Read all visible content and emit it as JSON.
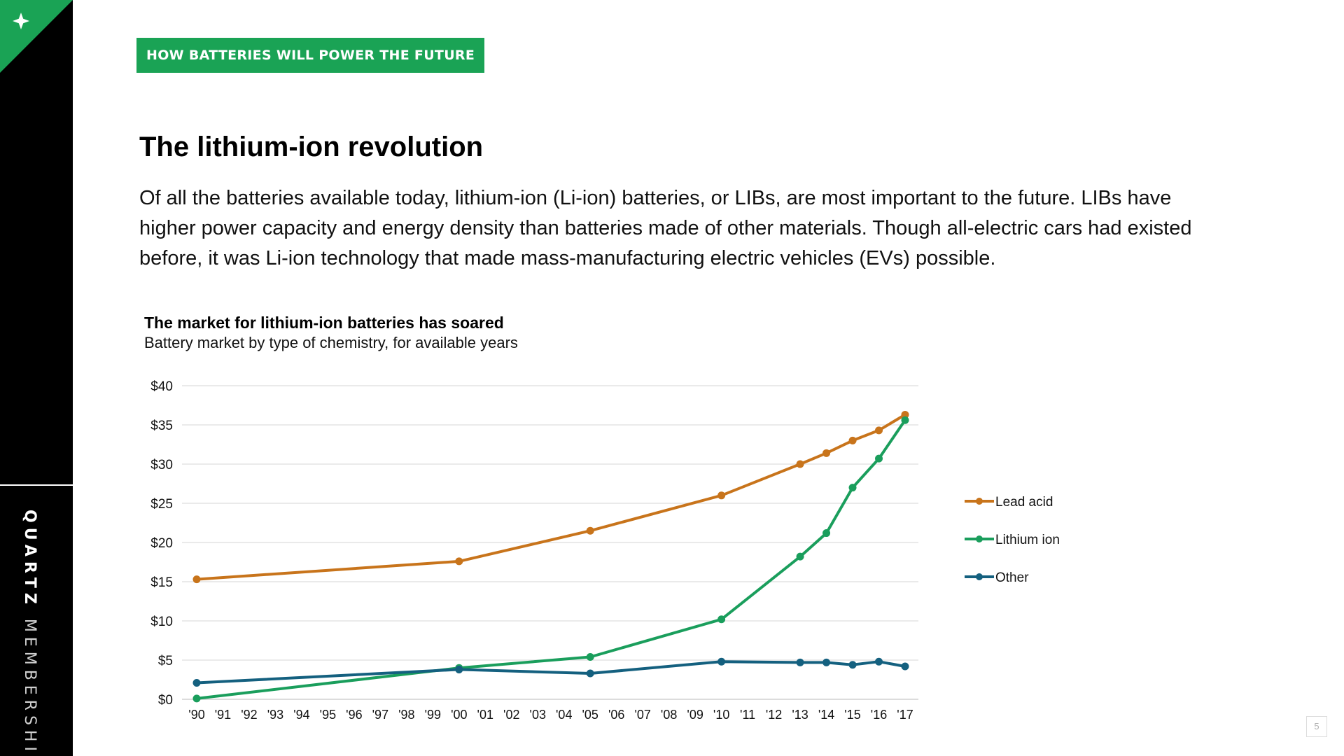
{
  "banner": {
    "label": "HOW BATTERIES WILL POWER THE FUTURE"
  },
  "sidebar": {
    "brand_bold": "QUARTZ",
    "brand_light": "MEMBERSHIP"
  },
  "heading": "The lithium-ion revolution",
  "body": "Of all the batteries available today, lithium-ion (Li-ion) batteries, or LIBs, are most important to the future. LIBs have higher power capacity and energy density than batteries made of other materials. Though all-electric cars had existed before, it was Li-ion technology that made mass-manufacturing electric vehicles (EVs) possible.",
  "page_number": "5",
  "colors": {
    "accent": "#1aa355",
    "lead_acid": "#c8741b",
    "lithium_ion": "#1a9e5c",
    "other": "#14607f",
    "grid": "#dddddd"
  },
  "chart_data": {
    "type": "line",
    "title": "The market for lithium-ion batteries has soared",
    "subtitle": "Battery market by type of chemistry, for available years",
    "xlabel": "",
    "ylabel": "",
    "categories": [
      "'90",
      "'91",
      "'92",
      "'93",
      "'94",
      "'95",
      "'96",
      "'97",
      "'98",
      "'99",
      "'00",
      "'01",
      "'02",
      "'03",
      "'04",
      "'05",
      "'06",
      "'07",
      "'08",
      "'09",
      "'10",
      "'11",
      "'12",
      "'13",
      "'14",
      "'15",
      "'16",
      "'17"
    ],
    "y_ticks": [
      "$0",
      "$5",
      "$10",
      "$15",
      "$20",
      "$25",
      "$30",
      "$35",
      "$40"
    ],
    "ylim": [
      0,
      40
    ],
    "grid": true,
    "legend_position": "right",
    "series": [
      {
        "name": "Lead acid",
        "color": "#c8741b",
        "points": [
          [
            1990,
            15.3
          ],
          [
            2000,
            17.6
          ],
          [
            2005,
            21.5
          ],
          [
            2010,
            26.0
          ],
          [
            2013,
            30.0
          ],
          [
            2014,
            31.4
          ],
          [
            2015,
            33.0
          ],
          [
            2016,
            34.3
          ],
          [
            2017,
            36.3
          ]
        ]
      },
      {
        "name": "Lithium ion",
        "color": "#1a9e5c",
        "points": [
          [
            1990,
            0.1
          ],
          [
            2000,
            4.0
          ],
          [
            2005,
            5.4
          ],
          [
            2010,
            10.2
          ],
          [
            2013,
            18.2
          ],
          [
            2014,
            21.2
          ],
          [
            2015,
            27.0
          ],
          [
            2016,
            30.7
          ],
          [
            2017,
            35.6
          ]
        ]
      },
      {
        "name": "Other",
        "color": "#14607f",
        "points": [
          [
            1990,
            2.1
          ],
          [
            2000,
            3.8
          ],
          [
            2005,
            3.3
          ],
          [
            2010,
            4.8
          ],
          [
            2013,
            4.7
          ],
          [
            2014,
            4.7
          ],
          [
            2015,
            4.4
          ],
          [
            2016,
            4.8
          ],
          [
            2017,
            4.2
          ]
        ]
      }
    ]
  }
}
